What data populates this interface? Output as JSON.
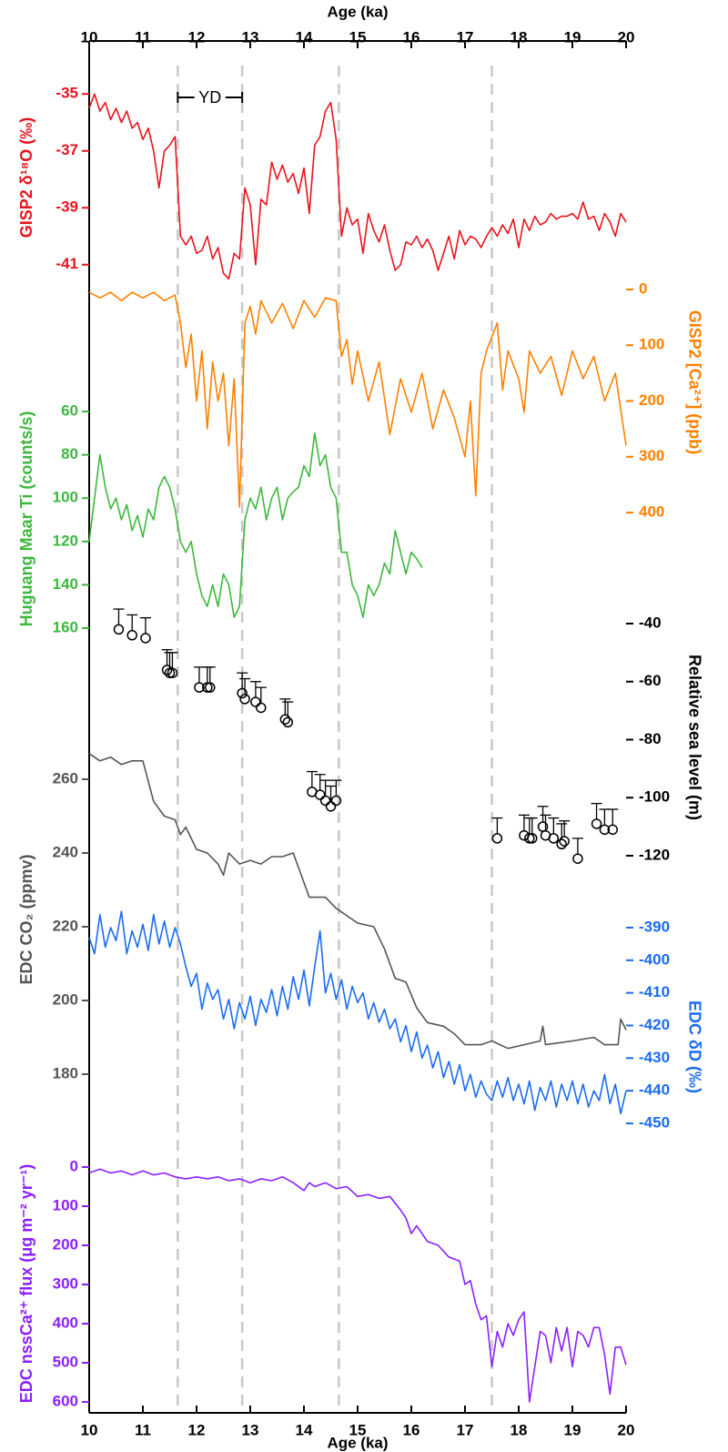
{
  "chart_data": {
    "type": "stacked",
    "xlabel": "Age (ka)",
    "xlim": [
      10,
      20
    ],
    "xticks": [
      10,
      11,
      12,
      13,
      14,
      15,
      16,
      17,
      18,
      19,
      20
    ],
    "reference_lines": [
      11.65,
      12.85,
      14.65,
      17.5
    ],
    "annotation": {
      "text": "YD",
      "x": [
        11.65,
        12.85
      ]
    },
    "panels": [
      {
        "type": "line",
        "ylabel": "GISP2 δ¹⁸O (‰)",
        "side": "left",
        "color": "#e8141c",
        "inverted": false,
        "ylim": [
          -42,
          -34
        ],
        "yticks": [
          -35,
          -37,
          -39,
          -41
        ],
        "x": [
          10.0,
          10.1,
          10.2,
          10.3,
          10.4,
          10.5,
          10.6,
          10.7,
          10.8,
          10.9,
          11.0,
          11.1,
          11.2,
          11.3,
          11.4,
          11.5,
          11.6,
          11.7,
          11.8,
          11.9,
          12.0,
          12.1,
          12.2,
          12.3,
          12.4,
          12.5,
          12.6,
          12.7,
          12.8,
          12.9,
          13.0,
          13.1,
          13.2,
          13.3,
          13.4,
          13.5,
          13.6,
          13.7,
          13.8,
          13.9,
          14.0,
          14.1,
          14.2,
          14.3,
          14.4,
          14.5,
          14.6,
          14.7,
          14.8,
          14.9,
          15.0,
          15.1,
          15.2,
          15.3,
          15.4,
          15.5,
          15.6,
          15.7,
          15.8,
          15.9,
          16.0,
          16.1,
          16.2,
          16.3,
          16.4,
          16.5,
          16.6,
          16.7,
          16.8,
          16.9,
          17.0,
          17.1,
          17.2,
          17.3,
          17.4,
          17.5,
          17.6,
          17.7,
          17.8,
          17.9,
          18.0,
          18.1,
          18.2,
          18.3,
          18.4,
          18.5,
          18.6,
          18.7,
          18.8,
          18.9,
          19.0,
          19.1,
          19.2,
          19.3,
          19.4,
          19.5,
          19.6,
          19.7,
          19.8,
          19.9,
          20.0
        ],
        "values": [
          -35.5,
          -35.0,
          -35.6,
          -35.3,
          -35.9,
          -35.5,
          -36.0,
          -35.6,
          -36.2,
          -36.0,
          -36.6,
          -36.2,
          -37.0,
          -38.3,
          -37.0,
          -36.8,
          -36.5,
          -40.0,
          -40.3,
          -40.0,
          -40.6,
          -40.5,
          -40.0,
          -40.8,
          -40.4,
          -41.3,
          -41.5,
          -40.6,
          -40.8,
          -38.3,
          -38.9,
          -41.0,
          -38.7,
          -38.9,
          -37.4,
          -38.0,
          -37.5,
          -38.1,
          -37.8,
          -38.5,
          -37.6,
          -39.2,
          -36.8,
          -36.5,
          -35.6,
          -35.3,
          -36.6,
          -40.0,
          -39.0,
          -39.6,
          -39.4,
          -40.6,
          -39.2,
          -39.8,
          -40.2,
          -39.6,
          -40.5,
          -41.2,
          -41.0,
          -40.2,
          -40.3,
          -40.0,
          -40.4,
          -40.1,
          -40.5,
          -41.2,
          -40.6,
          -40.0,
          -40.8,
          -39.8,
          -40.3,
          -40.0,
          -40.1,
          -40.4,
          -40.0,
          -39.7,
          -40.0,
          -39.6,
          -39.9,
          -39.4,
          -40.4,
          -39.4,
          -39.8,
          -39.3,
          -39.6,
          -39.5,
          -39.2,
          -39.4,
          -39.3,
          -39.3,
          -39.2,
          -39.4,
          -38.8,
          -39.4,
          -39.3,
          -39.8,
          -39.2,
          -39.5,
          -40.0,
          -39.2,
          -39.5
        ]
      },
      {
        "type": "line",
        "ylabel": "GISP2 [Ca²⁺] (ppb)",
        "side": "right",
        "color": "#ff8000",
        "inverted": true,
        "ylim": [
          0,
          400
        ],
        "yticks": [
          0,
          100,
          200,
          300,
          400
        ],
        "x": [
          10.0,
          10.2,
          10.4,
          10.6,
          10.8,
          11.0,
          11.2,
          11.4,
          11.6,
          11.7,
          11.8,
          11.9,
          12.0,
          12.1,
          12.2,
          12.3,
          12.4,
          12.5,
          12.6,
          12.7,
          12.8,
          12.9,
          13.0,
          13.1,
          13.2,
          13.4,
          13.6,
          13.8,
          14.0,
          14.2,
          14.4,
          14.6,
          14.7,
          14.8,
          14.9,
          15.0,
          15.2,
          15.4,
          15.6,
          15.8,
          16.0,
          16.2,
          16.4,
          16.6,
          16.8,
          17.0,
          17.1,
          17.2,
          17.3,
          17.4,
          17.6,
          17.7,
          17.8,
          18.0,
          18.1,
          18.2,
          18.4,
          18.6,
          18.8,
          19.0,
          19.2,
          19.4,
          19.6,
          19.8,
          20.0
        ],
        "values": [
          5,
          15,
          5,
          20,
          5,
          15,
          5,
          20,
          10,
          60,
          140,
          80,
          200,
          110,
          250,
          130,
          200,
          150,
          280,
          160,
          390,
          60,
          30,
          80,
          20,
          60,
          25,
          70,
          20,
          50,
          15,
          20,
          120,
          90,
          170,
          110,
          200,
          130,
          260,
          160,
          220,
          150,
          250,
          180,
          230,
          300,
          200,
          370,
          150,
          110,
          60,
          180,
          110,
          160,
          220,
          110,
          150,
          120,
          190,
          110,
          160,
          120,
          200,
          150,
          280
        ]
      },
      {
        "type": "line",
        "ylabel": "Huguang Maar Ti (counts/s)",
        "side": "left",
        "color": "#3cb83c",
        "inverted": true,
        "ylim": [
          60,
          160
        ],
        "yticks": [
          60,
          80,
          100,
          120,
          140,
          160
        ],
        "x": [
          10.0,
          10.1,
          10.2,
          10.3,
          10.4,
          10.5,
          10.6,
          10.7,
          10.8,
          10.9,
          11.0,
          11.1,
          11.2,
          11.3,
          11.4,
          11.5,
          11.6,
          11.7,
          11.8,
          11.9,
          12.0,
          12.1,
          12.2,
          12.3,
          12.4,
          12.5,
          12.6,
          12.7,
          12.8,
          12.9,
          13.0,
          13.1,
          13.2,
          13.3,
          13.4,
          13.5,
          13.6,
          13.7,
          13.8,
          13.9,
          14.0,
          14.1,
          14.2,
          14.3,
          14.4,
          14.5,
          14.6,
          14.7,
          14.8,
          14.9,
          15.0,
          15.1,
          15.2,
          15.3,
          15.4,
          15.5,
          15.6,
          15.7,
          15.8,
          15.9,
          16.0,
          16.1,
          16.2
        ],
        "values": [
          120,
          100,
          80,
          95,
          105,
          100,
          110,
          103,
          115,
          108,
          118,
          105,
          110,
          95,
          90,
          95,
          105,
          120,
          125,
          120,
          135,
          145,
          150,
          140,
          150,
          135,
          140,
          155,
          150,
          110,
          100,
          105,
          95,
          110,
          100,
          95,
          110,
          100,
          97,
          95,
          85,
          90,
          70,
          85,
          80,
          95,
          100,
          125,
          125,
          140,
          145,
          155,
          140,
          145,
          140,
          130,
          135,
          115,
          125,
          135,
          125,
          128,
          132
        ]
      },
      {
        "type": "scatter",
        "ylabel": "Relative sea level (m)",
        "side": "right",
        "color": "#000000",
        "inverted": false,
        "ylim": [
          -120,
          -40
        ],
        "yticks": [
          -40,
          -60,
          -80,
          -100,
          -120
        ],
        "x": [
          10.55,
          10.8,
          11.05,
          11.45,
          11.5,
          11.55,
          12.05,
          12.2,
          12.25,
          12.85,
          12.9,
          13.1,
          13.2,
          13.65,
          13.7,
          14.15,
          14.3,
          14.4,
          14.5,
          14.6,
          17.6,
          18.1,
          18.2,
          18.25,
          18.45,
          18.5,
          18.65,
          18.8,
          18.85,
          19.1,
          19.45,
          19.6,
          19.75
        ],
        "values": [
          -42,
          -44,
          -45,
          -56,
          -57,
          -57,
          -62,
          -62,
          -62,
          -64,
          -66,
          -67,
          -69,
          -73,
          -74,
          -98,
          -99,
          -101,
          -103,
          -101,
          -114,
          -113,
          -114,
          -114,
          -110,
          -113,
          -114,
          -116,
          -115,
          -121,
          -109,
          -111,
          -111
        ],
        "errors": [
          7,
          7,
          7,
          7,
          7,
          7,
          7,
          7,
          7,
          7,
          7,
          7,
          7,
          7,
          7,
          7,
          7,
          7,
          7,
          7,
          7,
          7,
          7,
          7,
          7,
          7,
          7,
          7,
          7,
          7,
          7,
          7,
          7
        ]
      },
      {
        "type": "line",
        "ylabel": "EDC CO₂ (ppmv)",
        "side": "left",
        "color": "#555555",
        "inverted": false,
        "ylim": [
          180,
          260
        ],
        "yticks": [
          180,
          200,
          220,
          240,
          260
        ],
        "x": [
          10.0,
          10.2,
          10.4,
          10.6,
          10.8,
          11.0,
          11.2,
          11.4,
          11.6,
          11.7,
          11.8,
          12.0,
          12.2,
          12.4,
          12.5,
          12.6,
          12.8,
          13.0,
          13.2,
          13.4,
          13.6,
          13.8,
          14.0,
          14.1,
          14.4,
          14.6,
          14.8,
          15.0,
          15.3,
          15.5,
          15.7,
          15.9,
          16.1,
          16.3,
          16.6,
          16.8,
          17.0,
          17.3,
          17.5,
          17.8,
          18.1,
          18.4,
          18.45,
          18.5,
          19.0,
          19.4,
          19.6,
          19.85,
          19.9,
          20.0
        ],
        "values": [
          267,
          265,
          266,
          264,
          265,
          265,
          254,
          250,
          249,
          245,
          247,
          241,
          240,
          237,
          234,
          240,
          237,
          238,
          237,
          239,
          239,
          240,
          232,
          228,
          228,
          225,
          223,
          221,
          220,
          214,
          206,
          205,
          198,
          194,
          193,
          191,
          188,
          188,
          189,
          187,
          188,
          189,
          193,
          188,
          189,
          190,
          188,
          188,
          195,
          192
        ]
      },
      {
        "type": "line",
        "ylabel": "EDC δD (‰)",
        "side": "right",
        "color": "#1a6cf0",
        "inverted": false,
        "ylim": [
          -450,
          -390
        ],
        "yticks": [
          -390,
          -400,
          -410,
          -420,
          -430,
          -440,
          -450
        ],
        "x": [
          10.0,
          10.1,
          10.2,
          10.3,
          10.4,
          10.5,
          10.6,
          10.7,
          10.8,
          10.9,
          11.0,
          11.1,
          11.2,
          11.3,
          11.4,
          11.5,
          11.6,
          11.7,
          11.8,
          11.9,
          12.0,
          12.1,
          12.2,
          12.3,
          12.4,
          12.5,
          12.6,
          12.7,
          12.8,
          12.9,
          13.0,
          13.1,
          13.2,
          13.3,
          13.4,
          13.5,
          13.6,
          13.7,
          13.8,
          13.9,
          14.0,
          14.1,
          14.2,
          14.3,
          14.4,
          14.5,
          14.6,
          14.7,
          14.8,
          14.9,
          15.0,
          15.1,
          15.2,
          15.3,
          15.4,
          15.5,
          15.6,
          15.7,
          15.8,
          15.9,
          16.0,
          16.1,
          16.2,
          16.3,
          16.4,
          16.5,
          16.6,
          16.7,
          16.8,
          16.9,
          17.0,
          17.1,
          17.2,
          17.3,
          17.4,
          17.5,
          17.6,
          17.7,
          17.8,
          17.9,
          18.0,
          18.1,
          18.2,
          18.3,
          18.4,
          18.5,
          18.6,
          18.7,
          18.8,
          18.9,
          19.0,
          19.1,
          19.2,
          19.3,
          19.4,
          19.5,
          19.6,
          19.7,
          19.8,
          19.9,
          20.0
        ],
        "values": [
          -393,
          -398,
          -386,
          -396,
          -390,
          -394,
          -385,
          -398,
          -391,
          -396,
          -389,
          -397,
          -386,
          -395,
          -388,
          -396,
          -390,
          -395,
          -402,
          -408,
          -404,
          -415,
          -407,
          -412,
          -409,
          -418,
          -412,
          -421,
          -413,
          -418,
          -411,
          -420,
          -412,
          -416,
          -409,
          -417,
          -408,
          -415,
          -405,
          -412,
          -403,
          -414,
          -402,
          -391,
          -410,
          -404,
          -412,
          -406,
          -415,
          -408,
          -413,
          -410,
          -418,
          -413,
          -419,
          -415,
          -421,
          -418,
          -425,
          -420,
          -428,
          -422,
          -430,
          -426,
          -433,
          -428,
          -436,
          -431,
          -438,
          -432,
          -440,
          -435,
          -442,
          -437,
          -441,
          -443,
          -437,
          -442,
          -436,
          -443,
          -438,
          -444,
          -437,
          -446,
          -439,
          -443,
          -437,
          -445,
          -438,
          -443,
          -437,
          -444,
          -438,
          -445,
          -440,
          -443,
          -435,
          -444,
          -438,
          -447,
          -440
        ]
      },
      {
        "type": "line",
        "ylabel": "EDC nssCa²⁺ flux (μg m⁻² yr⁻¹)",
        "side": "left",
        "color": "#8c1fff",
        "inverted": true,
        "ylim": [
          0,
          600
        ],
        "yticks": [
          0,
          100,
          200,
          300,
          400,
          500,
          600
        ],
        "x": [
          10.0,
          10.2,
          10.4,
          10.6,
          10.8,
          11.0,
          11.2,
          11.4,
          11.6,
          11.8,
          12.0,
          12.2,
          12.4,
          12.6,
          12.8,
          13.0,
          13.2,
          13.4,
          13.6,
          13.8,
          14.0,
          14.1,
          14.2,
          14.4,
          14.6,
          14.8,
          15.0,
          15.2,
          15.4,
          15.6,
          15.8,
          15.9,
          16.0,
          16.1,
          16.3,
          16.5,
          16.7,
          16.9,
          17.0,
          17.1,
          17.2,
          17.3,
          17.4,
          17.5,
          17.6,
          17.7,
          17.8,
          17.9,
          18.0,
          18.1,
          18.2,
          18.3,
          18.4,
          18.5,
          18.6,
          18.7,
          18.8,
          18.9,
          19.0,
          19.1,
          19.2,
          19.3,
          19.4,
          19.5,
          19.6,
          19.7,
          19.8,
          19.9,
          20.0
        ],
        "values": [
          15,
          5,
          15,
          10,
          20,
          10,
          20,
          15,
          25,
          30,
          25,
          30,
          25,
          35,
          30,
          40,
          30,
          35,
          25,
          40,
          60,
          40,
          50,
          40,
          55,
          50,
          75,
          70,
          80,
          75,
          110,
          130,
          170,
          150,
          190,
          200,
          230,
          240,
          300,
          290,
          350,
          390,
          380,
          510,
          420,
          460,
          400,
          430,
          390,
          370,
          600,
          510,
          420,
          430,
          500,
          410,
          470,
          410,
          510,
          420,
          430,
          460,
          410,
          410,
          480,
          580,
          460,
          460,
          505
        ]
      }
    ]
  }
}
